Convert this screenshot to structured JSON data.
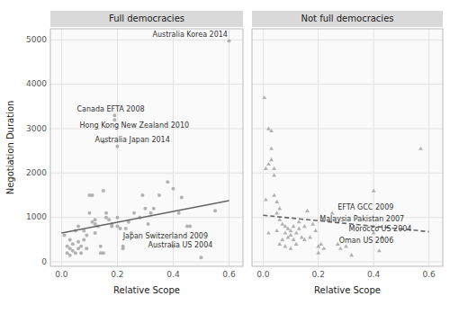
{
  "chart_data": [
    {
      "type": "scatter",
      "title": "Full democracies",
      "x_label": "Relative Scope",
      "y_label": "Negotiation Duration",
      "xlim": [
        -0.04,
        0.65
      ],
      "ylim": [
        -100,
        5250
      ],
      "xticks": [
        {
          "value": 0.0,
          "label": "0.0"
        },
        0.2,
        0.4,
        0.6
      ],
      "yticks": [
        0,
        1000,
        2000,
        3000,
        4000,
        5000
      ],
      "grid": true,
      "series": [
        {
          "type": "scatter",
          "color": "#aaaaaa",
          "marker": "circle",
          "x": [
            0.01,
            0.02,
            0.02,
            0.03,
            0.03,
            0.03,
            0.04,
            0.04,
            0.05,
            0.05,
            0.06,
            0.06,
            0.06,
            0.07,
            0.07,
            0.08,
            0.08,
            0.09,
            0.09,
            0.1,
            0.1,
            0.11,
            0.11,
            0.12,
            0.12,
            0.12,
            0.13,
            0.14,
            0.14,
            0.15,
            0.15,
            0.15,
            0.16,
            0.16,
            0.17,
            0.18,
            0.18,
            0.19,
            0.19,
            0.2,
            0.2,
            0.2,
            0.21,
            0.22,
            0.22,
            0.23,
            0.24,
            0.25,
            0.26,
            0.28,
            0.29,
            0.3,
            0.31,
            0.32,
            0.33,
            0.35,
            0.38,
            0.4,
            0.4,
            0.42,
            0.43,
            0.45,
            0.46,
            0.5,
            0.55,
            0.6
          ],
          "values": [
            600,
            350,
            200,
            500,
            300,
            150,
            400,
            250,
            700,
            200,
            300,
            450,
            800,
            200,
            350,
            500,
            700,
            300,
            600,
            1500,
            1100,
            900,
            1500,
            850,
            650,
            950,
            800,
            350,
            200,
            200,
            1600,
            2700,
            1100,
            1000,
            950,
            850,
            800,
            3300,
            3200,
            800,
            1000,
            2600,
            750,
            350,
            300,
            750,
            900,
            650,
            1100,
            1000,
            1500,
            1200,
            850,
            1100,
            1200,
            1500,
            1800,
            350,
            1650,
            1100,
            1450,
            800,
            800,
            100,
            1150,
            4975
          ]
        },
        {
          "type": "line",
          "color": "#666666",
          "line_style": "solid",
          "x": [
            0.0,
            0.6
          ],
          "values": [
            650,
            1380
          ]
        }
      ],
      "annotations": [
        {
          "text": "Australia Korea 2014",
          "x": 0.595,
          "y": 5020
        },
        {
          "text": "Canada EFTA 2008",
          "x": 0.055,
          "y": 3350
        },
        {
          "text": "Hong Kong New Zealand 2010",
          "x": 0.065,
          "y": 3190
        },
        {
          "text": "Australia Japan 2014",
          "x": 0.12,
          "y": 2650
        },
        {
          "text": "Japan Switzerland 2009",
          "x": 0.22,
          "y": 490
        },
        {
          "text": "Australia US 2004",
          "x": 0.31,
          "y": 280
        }
      ]
    },
    {
      "type": "scatter",
      "title": "Not full democracies",
      "x_label": "Relative Scope",
      "xlim": [
        -0.04,
        0.65
      ],
      "ylim": [
        -100,
        5250
      ],
      "xticks": [
        {
          "value": 0.0,
          "label": "0.0"
        },
        0.2,
        0.4,
        0.6
      ],
      "yticks": [
        0,
        1000,
        2000,
        3000,
        4000,
        5000
      ],
      "grid": true,
      "tick_labels": "x",
      "series": [
        {
          "type": "scatter",
          "color": "#aaaaaa",
          "marker": "triangle",
          "x": [
            0.005,
            0.01,
            0.01,
            0.02,
            0.02,
            0.02,
            0.03,
            0.03,
            0.03,
            0.04,
            0.04,
            0.04,
            0.05,
            0.05,
            0.05,
            0.06,
            0.06,
            0.06,
            0.07,
            0.07,
            0.08,
            0.08,
            0.08,
            0.09,
            0.09,
            0.1,
            0.1,
            0.1,
            0.11,
            0.11,
            0.12,
            0.12,
            0.13,
            0.13,
            0.14,
            0.15,
            0.15,
            0.16,
            0.17,
            0.18,
            0.19,
            0.2,
            0.2,
            0.21,
            0.22,
            0.25,
            0.27,
            0.28,
            0.3,
            0.32,
            0.4,
            0.4,
            0.42,
            0.43,
            0.57
          ],
          "values": [
            3700,
            2100,
            1400,
            3000,
            2200,
            650,
            2950,
            2550,
            2300,
            2100,
            1950,
            1500,
            1350,
            1100,
            700,
            1200,
            950,
            400,
            850,
            500,
            800,
            650,
            350,
            750,
            550,
            700,
            600,
            300,
            800,
            500,
            650,
            400,
            900,
            750,
            550,
            800,
            500,
            1150,
            550,
            850,
            700,
            350,
            200,
            400,
            300,
            1100,
            400,
            300,
            350,
            150,
            1600,
            650,
            250,
            550,
            2550
          ]
        },
        {
          "type": "line",
          "color": "#666666",
          "line_style": "dashed",
          "x": [
            0.0,
            0.6
          ],
          "values": [
            1050,
            680
          ]
        }
      ],
      "annotations": [
        {
          "text": "EFTA GCC 2009",
          "x": 0.27,
          "y": 1130
        },
        {
          "text": "Malaysia Pakistan 2007",
          "x": 0.205,
          "y": 870
        },
        {
          "text": "Morocco US 2004",
          "x": 0.31,
          "y": 650
        },
        {
          "text": "Oman US 2006",
          "x": 0.275,
          "y": 390
        }
      ]
    }
  ]
}
